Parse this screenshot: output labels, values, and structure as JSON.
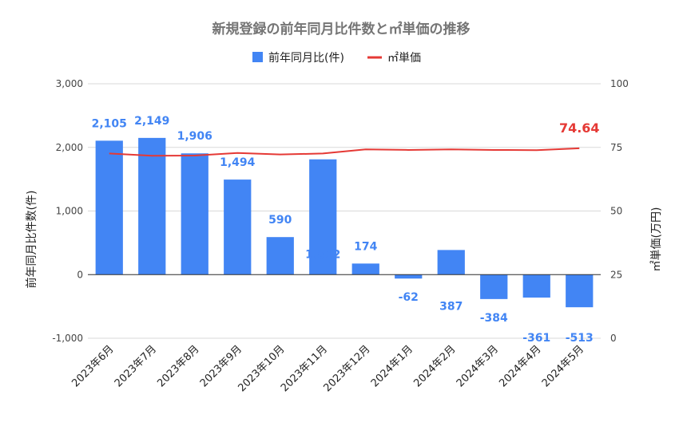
{
  "chart_data": {
    "type": "bar",
    "title": "新規登録の前年同月比件数と㎡単価の推移",
    "categories": [
      "2023年6月",
      "2023年7月",
      "2023年8月",
      "2023年9月",
      "2023年10月",
      "2023年11月",
      "2023年12月",
      "2024年1月",
      "2024年2月",
      "2024年3月",
      "2024年4月",
      "2024年5月"
    ],
    "series": [
      {
        "name": "前年同月比(件)",
        "type": "bar",
        "axis": "left",
        "color": "#4285F4",
        "values": [
          2105,
          2149,
          1906,
          1494,
          590,
          1812,
          174,
          -62,
          387,
          -384,
          -361,
          -513
        ],
        "labels": [
          "2,105",
          "2,149",
          "1,906",
          "1,494",
          "590",
          "1,812",
          "174",
          "-62",
          "387",
          "-384",
          "-361",
          "-513"
        ]
      },
      {
        "name": "㎡単価",
        "type": "line",
        "axis": "right",
        "color": "#E53935",
        "values": [
          72.6,
          71.7,
          71.8,
          72.8,
          72.2,
          72.6,
          74.2,
          74.0,
          74.2,
          74.0,
          73.9,
          74.64
        ],
        "last_label": "74.64"
      }
    ],
    "ylabel_left": "前年同月比件数(件)",
    "ylabel_right": "㎡単価(万円)",
    "ylim_left": [
      -1000,
      3000
    ],
    "yticks_left": [
      "-1,000",
      "0",
      "1,000",
      "2,000",
      "3,000"
    ],
    "ylim_right": [
      0,
      100
    ],
    "yticks_right": [
      "0",
      "25",
      "50",
      "75",
      "100"
    ],
    "grid": true,
    "legend_position": "top"
  }
}
